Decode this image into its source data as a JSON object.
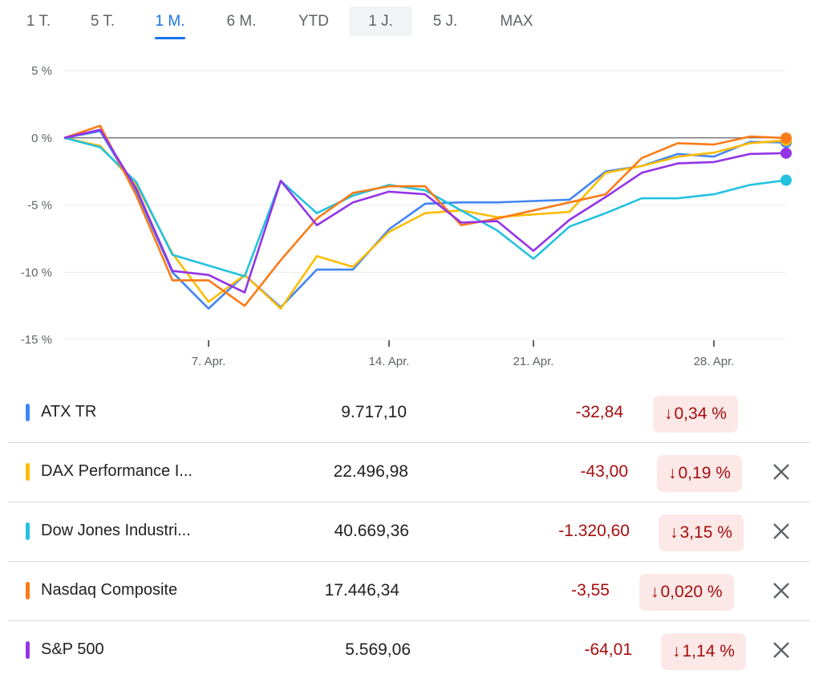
{
  "tabs": [
    "1 T.",
    "5 T.",
    "1 M.",
    "6 M.",
    "YTD",
    "1 J.",
    "5 J.",
    "MAX"
  ],
  "active_tab": "1 M.",
  "hover_tab": "1 J.",
  "chart_data": {
    "type": "line",
    "title": "",
    "xlabel": "",
    "ylabel": "",
    "y_ticks": [
      "5 %",
      "0 %",
      "-5 %",
      "-10 %",
      "-15 %"
    ],
    "y_tick_values": [
      5,
      0,
      -5,
      -10,
      -15
    ],
    "x_ticks": [
      "7. Apr.",
      "14. Apr.",
      "21. Apr.",
      "28. Apr."
    ],
    "x_tick_index": [
      4,
      9,
      13,
      18
    ],
    "ylim": [
      -15,
      5
    ],
    "n_points": 21,
    "zero_line": true,
    "series": [
      {
        "name": "ATX TR",
        "color": "#4285f4",
        "values": [
          0,
          0.5,
          -4,
          -10,
          -12.7,
          -10.2,
          -12.6,
          -9.8,
          -9.8,
          -6.8,
          -4.9,
          -4.8,
          -4.8,
          -4.7,
          -4.6,
          -2.5,
          -2.1,
          -1.2,
          -1.4,
          -0.3,
          -0.34
        ]
      },
      {
        "name": "DAX Performance I...",
        "color": "#fbbc04",
        "values": [
          0,
          -0.6,
          -3.5,
          -8.6,
          -12.2,
          -10.2,
          -12.7,
          -8.8,
          -9.6,
          -7.0,
          -5.6,
          -5.4,
          -5.9,
          -5.7,
          -5.5,
          -2.6,
          -2.1,
          -1.4,
          -1.1,
          -0.4,
          -0.19
        ]
      },
      {
        "name": "Dow Jones Industri...",
        "color": "#24c1e0",
        "values": [
          0,
          -0.7,
          -3.3,
          -8.7,
          -9.5,
          -10.3,
          -3.2,
          -5.6,
          -4.3,
          -3.5,
          -3.9,
          -5.4,
          -6.9,
          -9.0,
          -6.6,
          -5.6,
          -4.5,
          -4.5,
          -4.2,
          -3.5,
          -3.15
        ]
      },
      {
        "name": "Nasdaq Composite",
        "color": "#fa7b17",
        "values": [
          0,
          0.9,
          -4.3,
          -10.6,
          -10.6,
          -12.5,
          -9.1,
          -6.0,
          -4.1,
          -3.6,
          -3.6,
          -6.5,
          -6.0,
          -5.4,
          -4.8,
          -4.2,
          -1.5,
          -0.4,
          -0.5,
          0.1,
          -0.02
        ]
      },
      {
        "name": "S&P 500",
        "color": "#9334e6",
        "values": [
          0,
          0.6,
          -3.8,
          -9.9,
          -10.2,
          -11.5,
          -3.2,
          -6.5,
          -4.8,
          -4.0,
          -4.2,
          -6.3,
          -6.2,
          -8.4,
          -6.1,
          -4.4,
          -2.6,
          -1.9,
          -1.8,
          -1.2,
          -1.14
        ]
      }
    ]
  },
  "rows": [
    {
      "color": "#4285f4",
      "name": "ATX TR",
      "value": "9.717,10",
      "change": "-32,84",
      "arrow": "↓",
      "pct": "0,34 %",
      "removable": false
    },
    {
      "color": "#fbbc04",
      "name": "DAX Performance I...",
      "value": "22.496,98",
      "change": "-43,00",
      "arrow": "↓",
      "pct": "0,19 %",
      "removable": true
    },
    {
      "color": "#24c1e0",
      "name": "Dow Jones Industri...",
      "value": "40.669,36",
      "change": "-1.320,60",
      "arrow": "↓",
      "pct": "3,15 %",
      "removable": true
    },
    {
      "color": "#fa7b17",
      "name": "Nasdaq Composite",
      "value": "17.446,34",
      "change": "-3,55",
      "arrow": "↓",
      "pct": "0,020 %",
      "removable": true
    },
    {
      "color": "#9334e6",
      "name": "S&P 500",
      "value": "5.569,06",
      "change": "-64,01",
      "arrow": "↓",
      "pct": "1,14 %",
      "removable": true
    }
  ],
  "icons": {
    "remove": "close-icon",
    "down": "arrow-down-icon"
  }
}
